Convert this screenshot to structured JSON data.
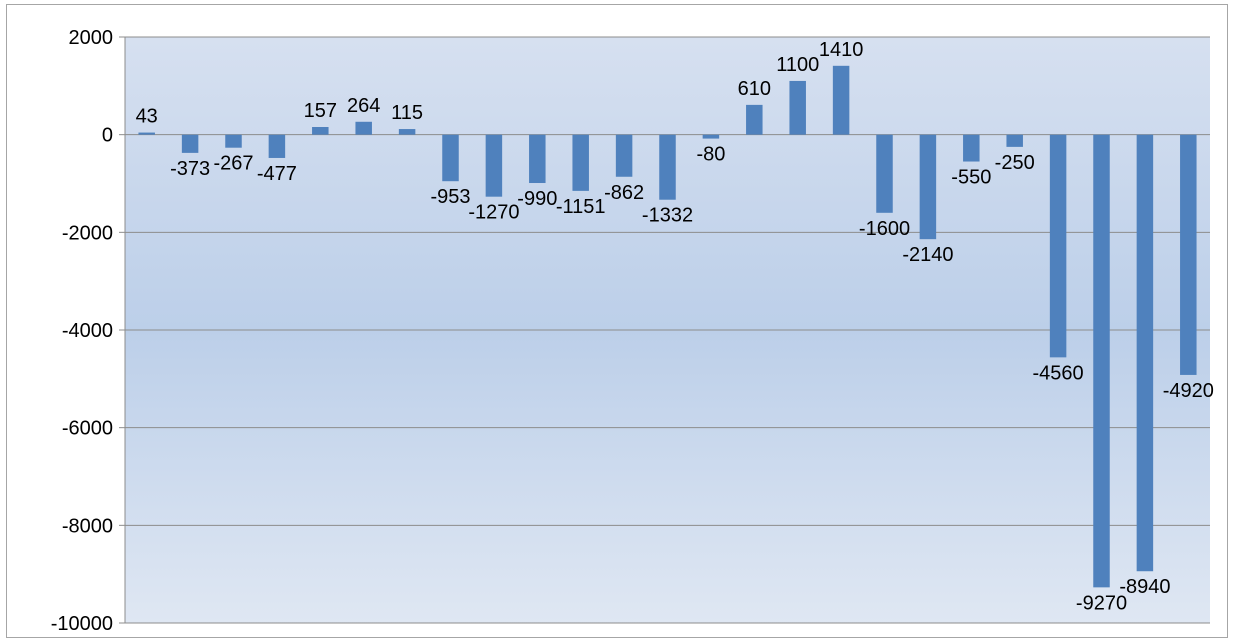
{
  "chart_data": {
    "type": "bar",
    "title": "",
    "xlabel": "",
    "ylabel": "",
    "ylim": [
      -10000,
      2000
    ],
    "yticks": [
      2000,
      0,
      -2000,
      -4000,
      -6000,
      -8000,
      -10000
    ],
    "grid": true,
    "legend": "none",
    "bar_color": "#4f81bd",
    "background_gradient": [
      "#d6e0f0",
      "#bcd0ea"
    ],
    "values": [
      43,
      -373,
      -267,
      -477,
      157,
      264,
      115,
      -953,
      -1270,
      -990,
      -1151,
      -862,
      -1332,
      -80,
      610,
      1100,
      1410,
      -1600,
      -2140,
      -550,
      -250,
      -4560,
      -9270,
      -8940,
      -4920
    ],
    "data_labels": [
      "43",
      "-373",
      "-267",
      "-477",
      "157",
      "264",
      "115",
      "-953",
      "-1270",
      "-990",
      "-1151",
      "-862",
      "-1332",
      "-80",
      "610",
      "1100",
      "1410",
      "-1600",
      "-2140",
      "-550",
      "-250",
      "-4560",
      "-9270",
      "-8940",
      "-4920"
    ],
    "ytick_labels": [
      "2000",
      "0",
      "-2000",
      "-4000",
      "-6000",
      "-8000",
      "-10000"
    ]
  }
}
